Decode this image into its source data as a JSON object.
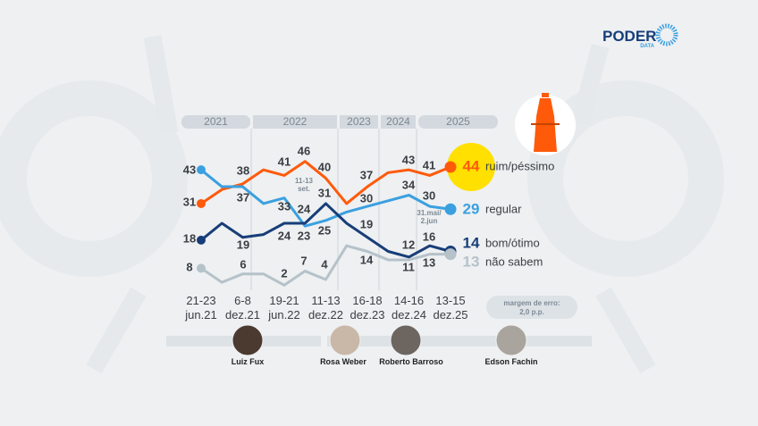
{
  "brand": {
    "name": "PODER",
    "sub": "DATA"
  },
  "chart_data": {
    "type": "line",
    "title": "",
    "years": [
      "2021",
      "2022",
      "2023",
      "2024",
      "2025"
    ],
    "x_labels": [
      [
        "21-23",
        "jun.21"
      ],
      [
        "6-8",
        "dez.21"
      ],
      [
        "19-21",
        "jun.22"
      ],
      [
        "11-13",
        "dez.22"
      ],
      [
        "16-18",
        "dez.23"
      ],
      [
        "14-16",
        "dez.24"
      ],
      [
        "13-15",
        "dez.25"
      ]
    ],
    "ylim": [
      0,
      50
    ],
    "series": [
      {
        "name": "ruim/péssimo",
        "color": "#ff5a0a",
        "values": [
          31,
          36,
          38,
          43,
          41,
          46,
          40,
          31,
          37,
          42,
          43,
          41,
          44
        ],
        "final": "44"
      },
      {
        "name": "regular",
        "color": "#3aa0e0",
        "values": [
          43,
          37,
          37,
          31,
          33,
          23,
          25,
          28,
          30,
          32,
          34,
          30,
          29
        ],
        "final": "29"
      },
      {
        "name": "bom/ótimo",
        "color": "#173e78",
        "values": [
          18,
          24,
          19,
          20,
          24,
          24,
          31,
          24,
          19,
          14,
          12,
          16,
          14
        ],
        "final": "14"
      },
      {
        "name": "não sabem",
        "color": "#b5c2c9",
        "values": [
          8,
          3,
          6,
          6,
          2,
          7,
          4,
          16,
          14,
          11,
          11,
          13,
          13
        ],
        "final": "13"
      }
    ],
    "data_labels": [
      [
        "31",
        "38",
        "41",
        "46",
        "40",
        "37",
        "43",
        "41"
      ],
      [
        "43",
        "37",
        "33",
        "23",
        "25",
        "30",
        "34",
        "30"
      ],
      [
        "18",
        "19",
        "24",
        "24",
        "31",
        "19",
        "12",
        "16"
      ],
      [
        "8",
        "6",
        "2",
        "7",
        "4",
        "14",
        "11",
        "13"
      ]
    ],
    "annotations": [
      [
        "11-13",
        "set."
      ],
      [
        "31.mai/",
        "2.jun"
      ]
    ],
    "margin_note": [
      "margem de erro:",
      "2,0 p.p."
    ],
    "highlight_color": "#ffe000"
  },
  "justices": [
    "Luiz Fux",
    "Rosa Weber",
    "Roberto Barroso",
    "Edson Fachin"
  ]
}
